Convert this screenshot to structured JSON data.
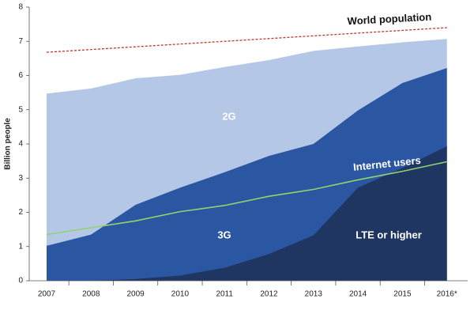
{
  "chart_data": {
    "type": "area",
    "y_label": "Billion people",
    "categories": [
      "2007",
      "2008",
      "2009",
      "2010",
      "2011",
      "2012",
      "2013",
      "2014",
      "2015",
      "2016*"
    ],
    "series": [
      {
        "name": "2G",
        "color": "#b4c7e7",
        "mark": "area",
        "values": [
          5.47,
          5.62,
          5.92,
          6.02,
          6.25,
          6.45,
          6.72,
          6.85,
          6.97,
          7.07
        ]
      },
      {
        "name": "3G",
        "color": "#2b56a1",
        "mark": "area",
        "values": [
          1.02,
          1.35,
          2.22,
          2.72,
          3.17,
          3.65,
          4.0,
          4.98,
          5.78,
          6.22
        ]
      },
      {
        "name": "LTE or higher",
        "color": "#1f3562",
        "mark": "area",
        "values": [
          0,
          0,
          0.05,
          0.15,
          0.38,
          0.78,
          1.33,
          2.72,
          3.3,
          3.93
        ]
      },
      {
        "name": "Internet users",
        "color": "#92d36e",
        "mark": "line",
        "values": [
          1.35,
          1.55,
          1.75,
          2.02,
          2.2,
          2.47,
          2.67,
          2.95,
          3.2,
          3.48
        ]
      },
      {
        "name": "World population",
        "color": "#c0392b",
        "mark": "line",
        "dashed": true,
        "values": [
          6.68,
          6.76,
          6.84,
          6.92,
          7.0,
          7.08,
          7.16,
          7.24,
          7.32,
          7.4
        ]
      }
    ],
    "ylim": [
      0,
      8
    ],
    "yticks": [
      0,
      1,
      2,
      3,
      4,
      5,
      6,
      7,
      8
    ],
    "grid": false
  }
}
